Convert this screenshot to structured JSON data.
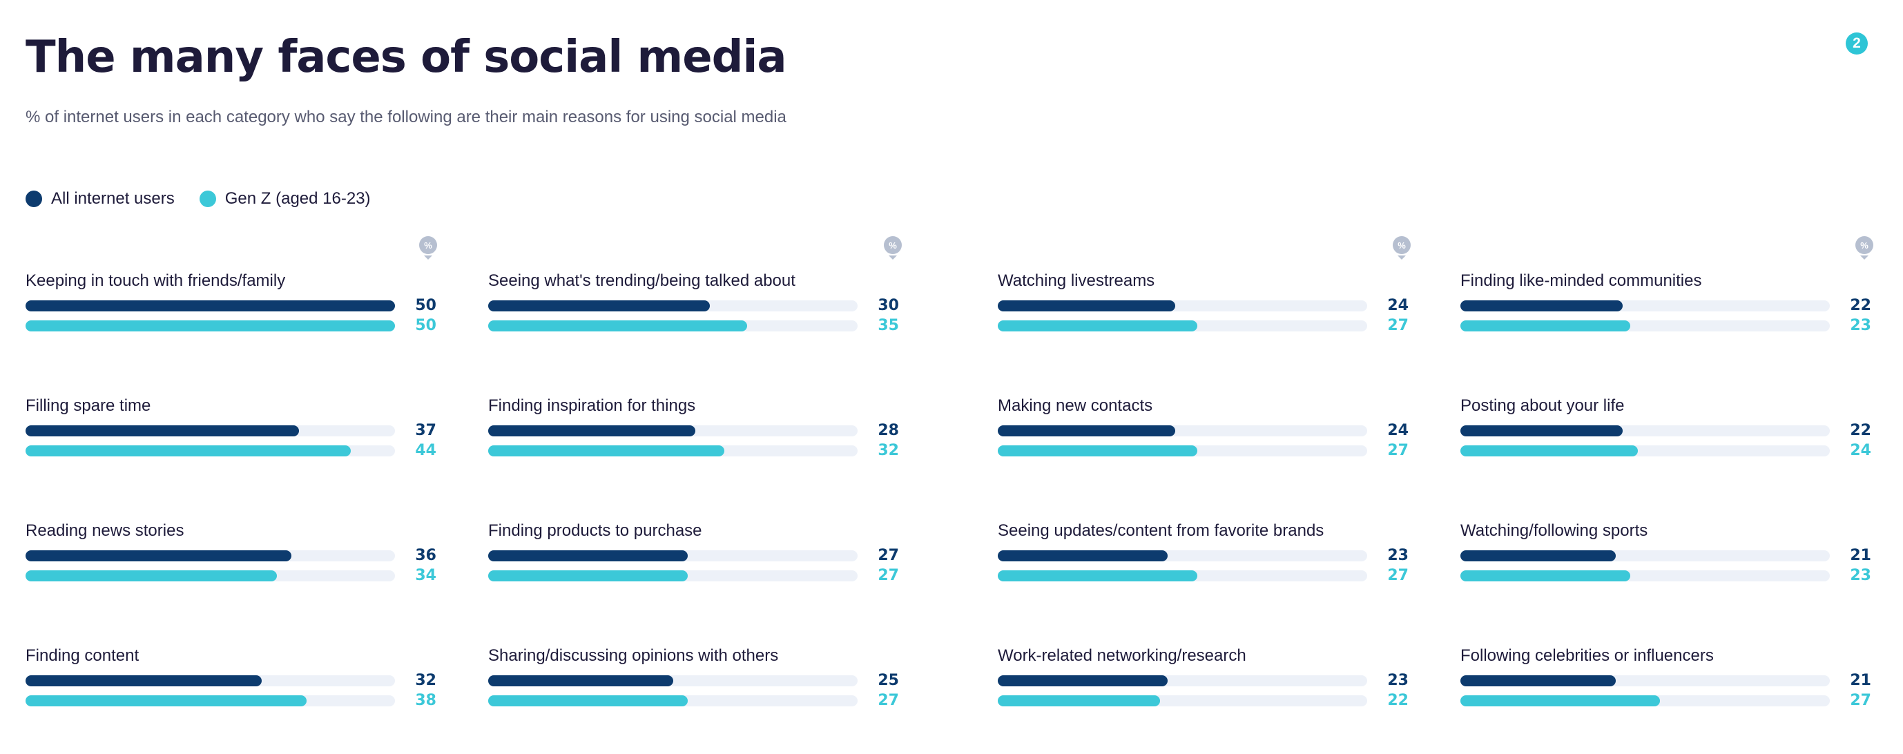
{
  "header": {
    "title": "The many faces of social media",
    "subtitle": "% of internet users in each category who say the following are their main reasons for using social media",
    "page_number": "2",
    "unit_badge": "%"
  },
  "colors": {
    "all_users": "#0d3b6e",
    "gen_z": "#3cc8d8",
    "track": "#edf1f8",
    "badge": "#2ec5d6",
    "title": "#1e1b3a"
  },
  "legend": [
    {
      "name": "All internet users",
      "color": "#0d3b6e"
    },
    {
      "name": "Gen Z (aged 16-23)",
      "color": "#3cc8d8"
    }
  ],
  "chart_data": {
    "type": "bar",
    "orientation": "horizontal",
    "title": "The many faces of social media",
    "subtitle": "% of internet users in each category who say the following are their main reasons for using social media",
    "xlim": [
      0,
      50
    ],
    "grid": false,
    "legend_position": "top-left",
    "categories": [
      "Keeping in touch with friends/family",
      "Filling spare time",
      "Reading news stories",
      "Finding content",
      "Seeing what's trending/being talked about",
      "Finding inspiration for things",
      "Finding products to purchase",
      "Sharing/discussing opinions with others",
      "Watching livestreams",
      "Making new contacts",
      "Seeing updates/content from favorite brands",
      "Work-related networking/research",
      "Finding like-minded communities",
      "Posting about your life",
      "Watching/following sports",
      "Following celebrities or influencers"
    ],
    "series": [
      {
        "name": "All internet users",
        "values": [
          50,
          37,
          36,
          32,
          30,
          28,
          27,
          25,
          24,
          24,
          23,
          23,
          22,
          22,
          21,
          21
        ]
      },
      {
        "name": "Gen Z (aged 16-23)",
        "values": [
          50,
          44,
          34,
          38,
          35,
          32,
          27,
          27,
          27,
          27,
          27,
          22,
          23,
          24,
          23,
          27
        ]
      }
    ]
  }
}
